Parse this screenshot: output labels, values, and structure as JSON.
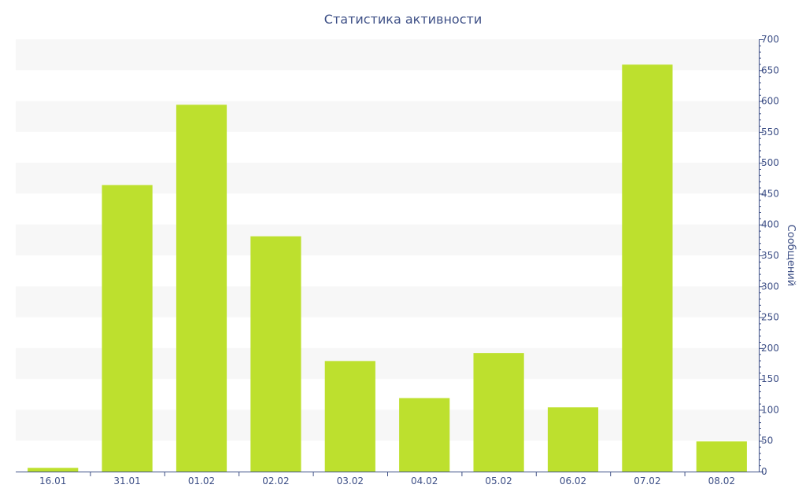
{
  "chart_data": {
    "type": "bar",
    "title": "Статистика активности",
    "xlabel": "",
    "ylabel": "Сообщений",
    "categories": [
      "16.01",
      "31.01",
      "01.02",
      "02.02",
      "03.02",
      "04.02",
      "05.02",
      "06.02",
      "07.02",
      "08.02"
    ],
    "values": [
      6,
      464,
      594,
      381,
      179,
      119,
      192,
      104,
      659,
      49
    ],
    "ylim": [
      0,
      700
    ],
    "yticks": [
      "0",
      "50",
      "100",
      "150",
      "200",
      "250",
      "300",
      "350",
      "400",
      "450",
      "500",
      "550",
      "600",
      "650",
      "700"
    ],
    "y_axis_side": "right",
    "grid": "alternating horizontal bands",
    "colors": {
      "bar": "#bde02e",
      "band": "#f7f7f7",
      "text": "#3d4f86",
      "axis": "#3d4f86"
    }
  }
}
